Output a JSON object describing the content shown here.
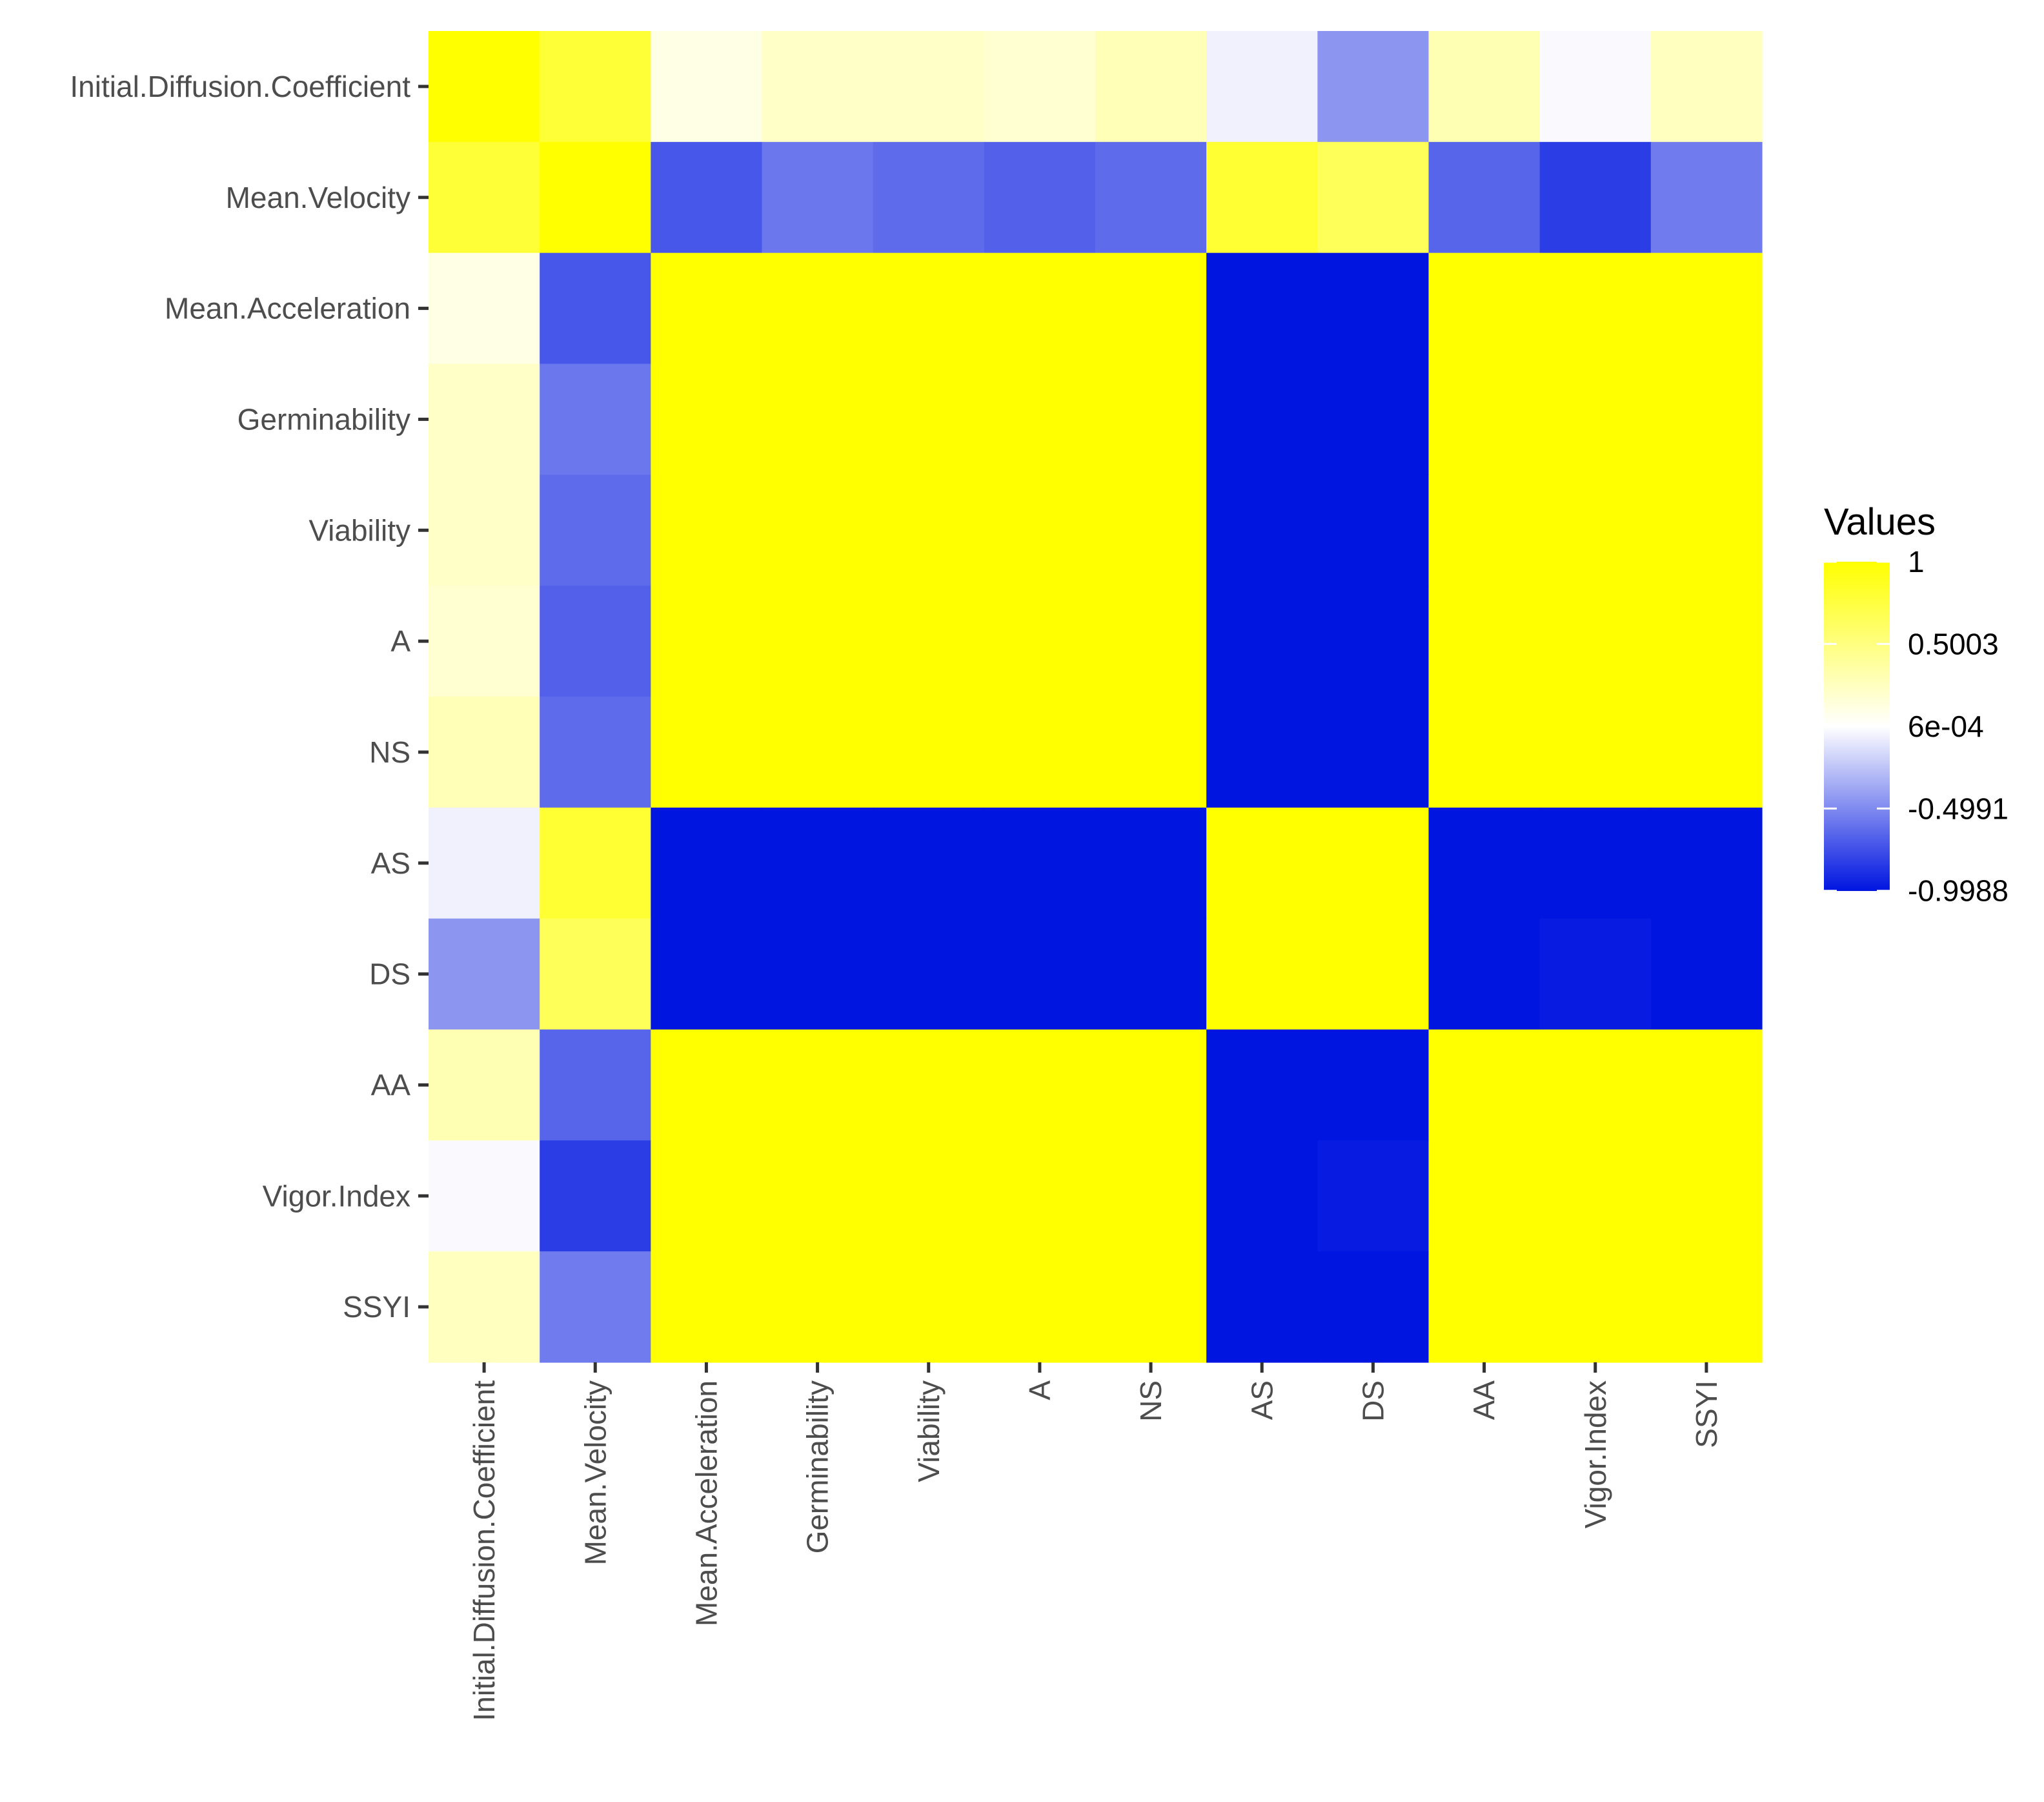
{
  "chart_data": {
    "type": "heatmap",
    "variables": [
      "Initial.Diffusion.Coefficient",
      "Mean.Velocity",
      "Mean.Acceleration",
      "Germinability",
      "Viability",
      "A",
      "NS",
      "AS",
      "DS",
      "AA",
      "Vigor.Index",
      "SSYI"
    ],
    "values": [
      [
        1.0,
        0.78,
        0.1,
        0.22,
        0.22,
        0.18,
        0.28,
        -0.06,
        -0.45,
        0.3,
        -0.02,
        0.25
      ],
      [
        0.78,
        1.0,
        -0.72,
        -0.58,
        -0.63,
        -0.68,
        -0.63,
        0.8,
        0.65,
        -0.66,
        -0.83,
        -0.56
      ],
      [
        0.1,
        -0.72,
        1.0,
        1.0,
        1.0,
        1.0,
        1.0,
        -1.0,
        -1.0,
        1.0,
        1.0,
        1.0
      ],
      [
        0.22,
        -0.58,
        1.0,
        1.0,
        1.0,
        1.0,
        1.0,
        -1.0,
        -1.0,
        1.0,
        1.0,
        1.0
      ],
      [
        0.22,
        -0.63,
        1.0,
        1.0,
        1.0,
        1.0,
        1.0,
        -1.0,
        -1.0,
        1.0,
        1.0,
        1.0
      ],
      [
        0.18,
        -0.68,
        1.0,
        1.0,
        1.0,
        1.0,
        1.0,
        -1.0,
        -1.0,
        1.0,
        1.0,
        1.0
      ],
      [
        0.28,
        -0.63,
        1.0,
        1.0,
        1.0,
        1.0,
        1.0,
        -1.0,
        -1.0,
        1.0,
        1.0,
        1.0
      ],
      [
        -0.06,
        0.8,
        -1.0,
        -1.0,
        -1.0,
        -1.0,
        -1.0,
        1.0,
        1.0,
        -1.0,
        -1.0,
        -1.0
      ],
      [
        -0.45,
        0.65,
        -1.0,
        -1.0,
        -1.0,
        -1.0,
        -1.0,
        1.0,
        1.0,
        -1.0,
        -0.97,
        -1.0
      ],
      [
        0.3,
        -0.66,
        1.0,
        1.0,
        1.0,
        1.0,
        1.0,
        -1.0,
        -1.0,
        1.0,
        1.0,
        1.0
      ],
      [
        -0.02,
        -0.83,
        1.0,
        1.0,
        1.0,
        1.0,
        1.0,
        -1.0,
        -0.97,
        1.0,
        1.0,
        1.0
      ],
      [
        0.25,
        -0.56,
        1.0,
        1.0,
        1.0,
        1.0,
        1.0,
        -1.0,
        -1.0,
        1.0,
        1.0,
        1.0
      ]
    ],
    "legend": {
      "title": "Values",
      "breaks": [
        1,
        0.5003,
        0.0006,
        -0.4991,
        -0.9988
      ],
      "labels": [
        "1",
        "0.5003",
        "6e-04",
        "-0.4991",
        "-0.9988"
      ],
      "placement": "right"
    },
    "color_scale": {
      "low": "#0015E0",
      "mid": "#FFFFFF",
      "high": "#FFFF00",
      "range": [
        -1,
        1
      ]
    },
    "grid": false
  }
}
